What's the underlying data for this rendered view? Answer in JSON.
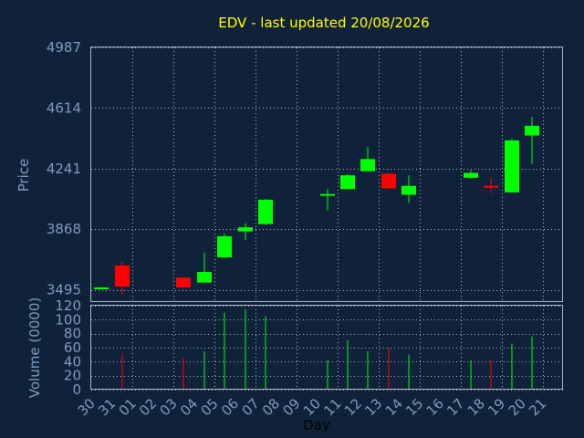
{
  "chart_data": {
    "type": "candlestick",
    "title": "EDV - last updated 20/08/2026",
    "xlabel": "Day",
    "ylabel_price": "Price",
    "ylabel_volume": "Volume (0000)",
    "x_ticks": [
      "30",
      "31",
      "01",
      "02",
      "03",
      "04",
      "05",
      "06",
      "07",
      "08",
      "09",
      "10",
      "11",
      "12",
      "13",
      "14",
      "15",
      "16",
      "17",
      "18",
      "19",
      "20",
      "21"
    ],
    "price_ticks": [
      3495,
      3868,
      4241,
      4614,
      4987
    ],
    "price_ylim": [
      3420,
      4987
    ],
    "volume_ticks": [
      0,
      20,
      40,
      60,
      80,
      100,
      120
    ],
    "volume_ylim": [
      0,
      120
    ],
    "colors": {
      "up": "#00ff00",
      "down": "#ff0000",
      "background": "#10223a",
      "title": "#ffff00",
      "axis_text": "#7d9bbd"
    },
    "candles": [
      {
        "day": "30",
        "open": 3505,
        "high": 3512,
        "low": 3498,
        "close": 3510,
        "volume": 0
      },
      {
        "day": "31",
        "open": 3645,
        "high": 3665,
        "low": 3468,
        "close": 3515,
        "volume": 52
      },
      {
        "day": "03",
        "open": 3570,
        "high": 3572,
        "low": 3505,
        "close": 3510,
        "volume": 45
      },
      {
        "day": "04",
        "open": 3540,
        "high": 3725,
        "low": 3540,
        "close": 3605,
        "volume": 55
      },
      {
        "day": "05",
        "open": 3695,
        "high": 3840,
        "low": 3695,
        "close": 3825,
        "volume": 110
      },
      {
        "day": "06",
        "open": 3855,
        "high": 3905,
        "low": 3800,
        "close": 3880,
        "volume": 115
      },
      {
        "day": "07",
        "open": 3900,
        "high": 4055,
        "low": 3895,
        "close": 4050,
        "volume": 105
      },
      {
        "day": "10",
        "open": 4080,
        "high": 4115,
        "low": 3985,
        "close": 4085,
        "volume": 42
      },
      {
        "day": "11",
        "open": 4115,
        "high": 4205,
        "low": 4115,
        "close": 4200,
        "volume": 71
      },
      {
        "day": "12",
        "open": 4225,
        "high": 4375,
        "low": 4225,
        "close": 4300,
        "volume": 55
      },
      {
        "day": "13",
        "open": 4210,
        "high": 4215,
        "low": 4115,
        "close": 4120,
        "volume": 60
      },
      {
        "day": "14",
        "open": 4080,
        "high": 4200,
        "low": 4030,
        "close": 4135,
        "volume": 50
      },
      {
        "day": "17",
        "open": 4185,
        "high": 4230,
        "low": 4180,
        "close": 4215,
        "volume": 42
      },
      {
        "day": "18",
        "open": 4135,
        "high": 4185,
        "low": 4090,
        "close": 4125,
        "volume": 43
      },
      {
        "day": "19",
        "open": 4095,
        "high": 4425,
        "low": 4095,
        "close": 4415,
        "volume": 66
      },
      {
        "day": "20",
        "open": 4445,
        "high": 4560,
        "low": 4270,
        "close": 4505,
        "volume": 76
      }
    ]
  }
}
